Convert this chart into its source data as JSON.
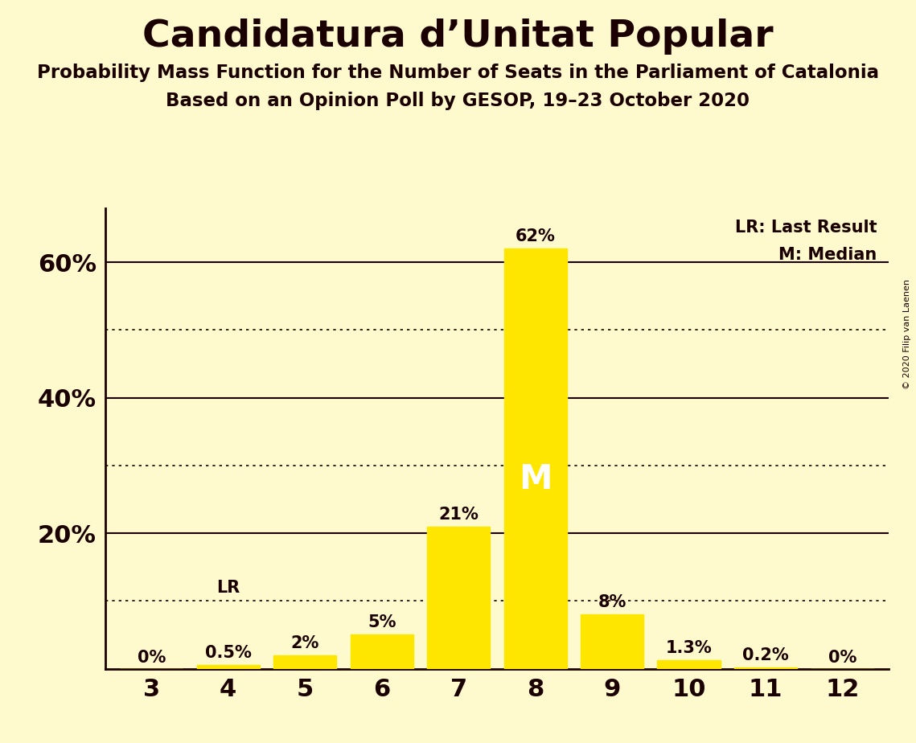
{
  "title": "Candidatura d’Unitat Popular",
  "subtitle1": "Probability Mass Function for the Number of Seats in the Parliament of Catalonia",
  "subtitle2": "Based on an Opinion Poll by GESOP, 19–23 October 2020",
  "copyright": "© 2020 Filip van Laenen",
  "seats": [
    3,
    4,
    5,
    6,
    7,
    8,
    9,
    10,
    11,
    12
  ],
  "probabilities": [
    0.0,
    0.5,
    2.0,
    5.0,
    21.0,
    62.0,
    8.0,
    1.3,
    0.2,
    0.0
  ],
  "bar_color": "#FFE600",
  "background_color": "#FFFACD",
  "text_color": "#1A0000",
  "last_result_seat": 4,
  "median_seat": 8,
  "legend_lr": "LR: Last Result",
  "legend_m": "M: Median",
  "yticks": [
    20,
    40,
    60
  ],
  "dotted_lines": [
    10,
    30,
    50
  ],
  "solid_lines": [
    20,
    40,
    60
  ],
  "ylim_max": 68,
  "bar_labels": [
    "0%",
    "0.5%",
    "2%",
    "5%",
    "21%",
    "62%",
    "8%",
    "1.3%",
    "0.2%",
    "0%"
  ],
  "median_label": "M",
  "lr_label": "LR"
}
